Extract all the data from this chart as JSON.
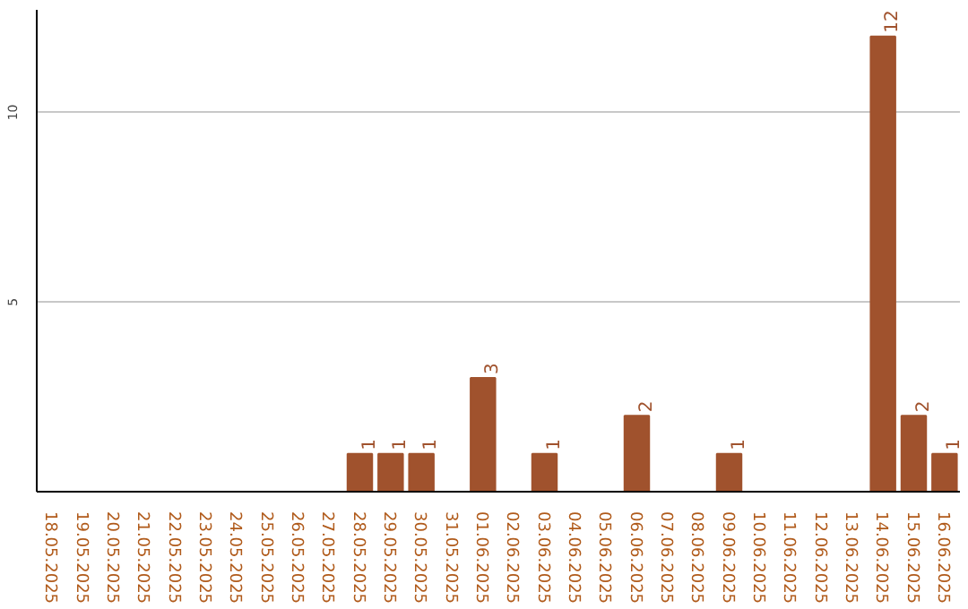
{
  "chart_data": {
    "type": "bar",
    "categories": [
      "18.05.2025",
      "19.05.2025",
      "20.05.2025",
      "21.05.2025",
      "22.05.2025",
      "23.05.2025",
      "24.05.2025",
      "25.05.2025",
      "26.05.2025",
      "27.05.2025",
      "28.05.2025",
      "29.05.2025",
      "30.05.2025",
      "31.05.2025",
      "01.06.2025",
      "02.06.2025",
      "03.06.2025",
      "04.06.2025",
      "05.06.2025",
      "06.06.2025",
      "07.06.2025",
      "08.06.2025",
      "09.06.2025",
      "10.06.2025",
      "11.06.2025",
      "12.06.2025",
      "13.06.2025",
      "14.06.2025",
      "15.06.2025",
      "16.06.2025"
    ],
    "values": [
      0,
      0,
      0,
      0,
      0,
      0,
      0,
      0,
      0,
      0,
      1,
      1,
      1,
      0,
      3,
      0,
      1,
      0,
      0,
      2,
      0,
      0,
      1,
      0,
      0,
      0,
      0,
      12,
      2,
      1
    ],
    "value_labels": [
      null,
      null,
      null,
      null,
      null,
      null,
      null,
      null,
      null,
      null,
      "1",
      "1",
      "1",
      null,
      "3",
      null,
      "1",
      null,
      null,
      "2",
      null,
      null,
      "1",
      null,
      null,
      null,
      null,
      "12",
      "2",
      "1"
    ],
    "color": "#a0522d",
    "ylim": [
      0,
      12.7
    ],
    "yticks": [
      5,
      10
    ],
    "grid": "y"
  }
}
